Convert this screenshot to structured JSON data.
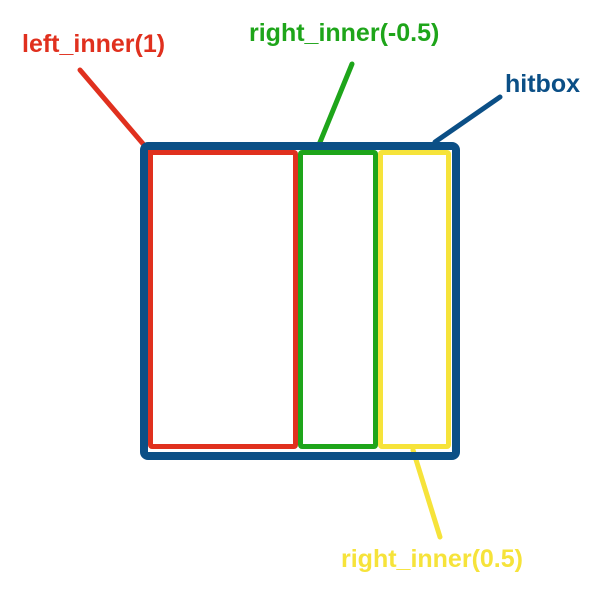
{
  "labels": {
    "left_inner": "left_inner(1)",
    "right_inner_neg": "right_inner(-0.5)",
    "hitbox": "hitbox",
    "right_inner_pos": "right_inner(0.5)"
  },
  "colors": {
    "hitbox": "#0b4f86",
    "left_inner": "#e0301e",
    "right_inner_neg": "#1ea51a",
    "right_inner_pos": "#f6e33a"
  }
}
